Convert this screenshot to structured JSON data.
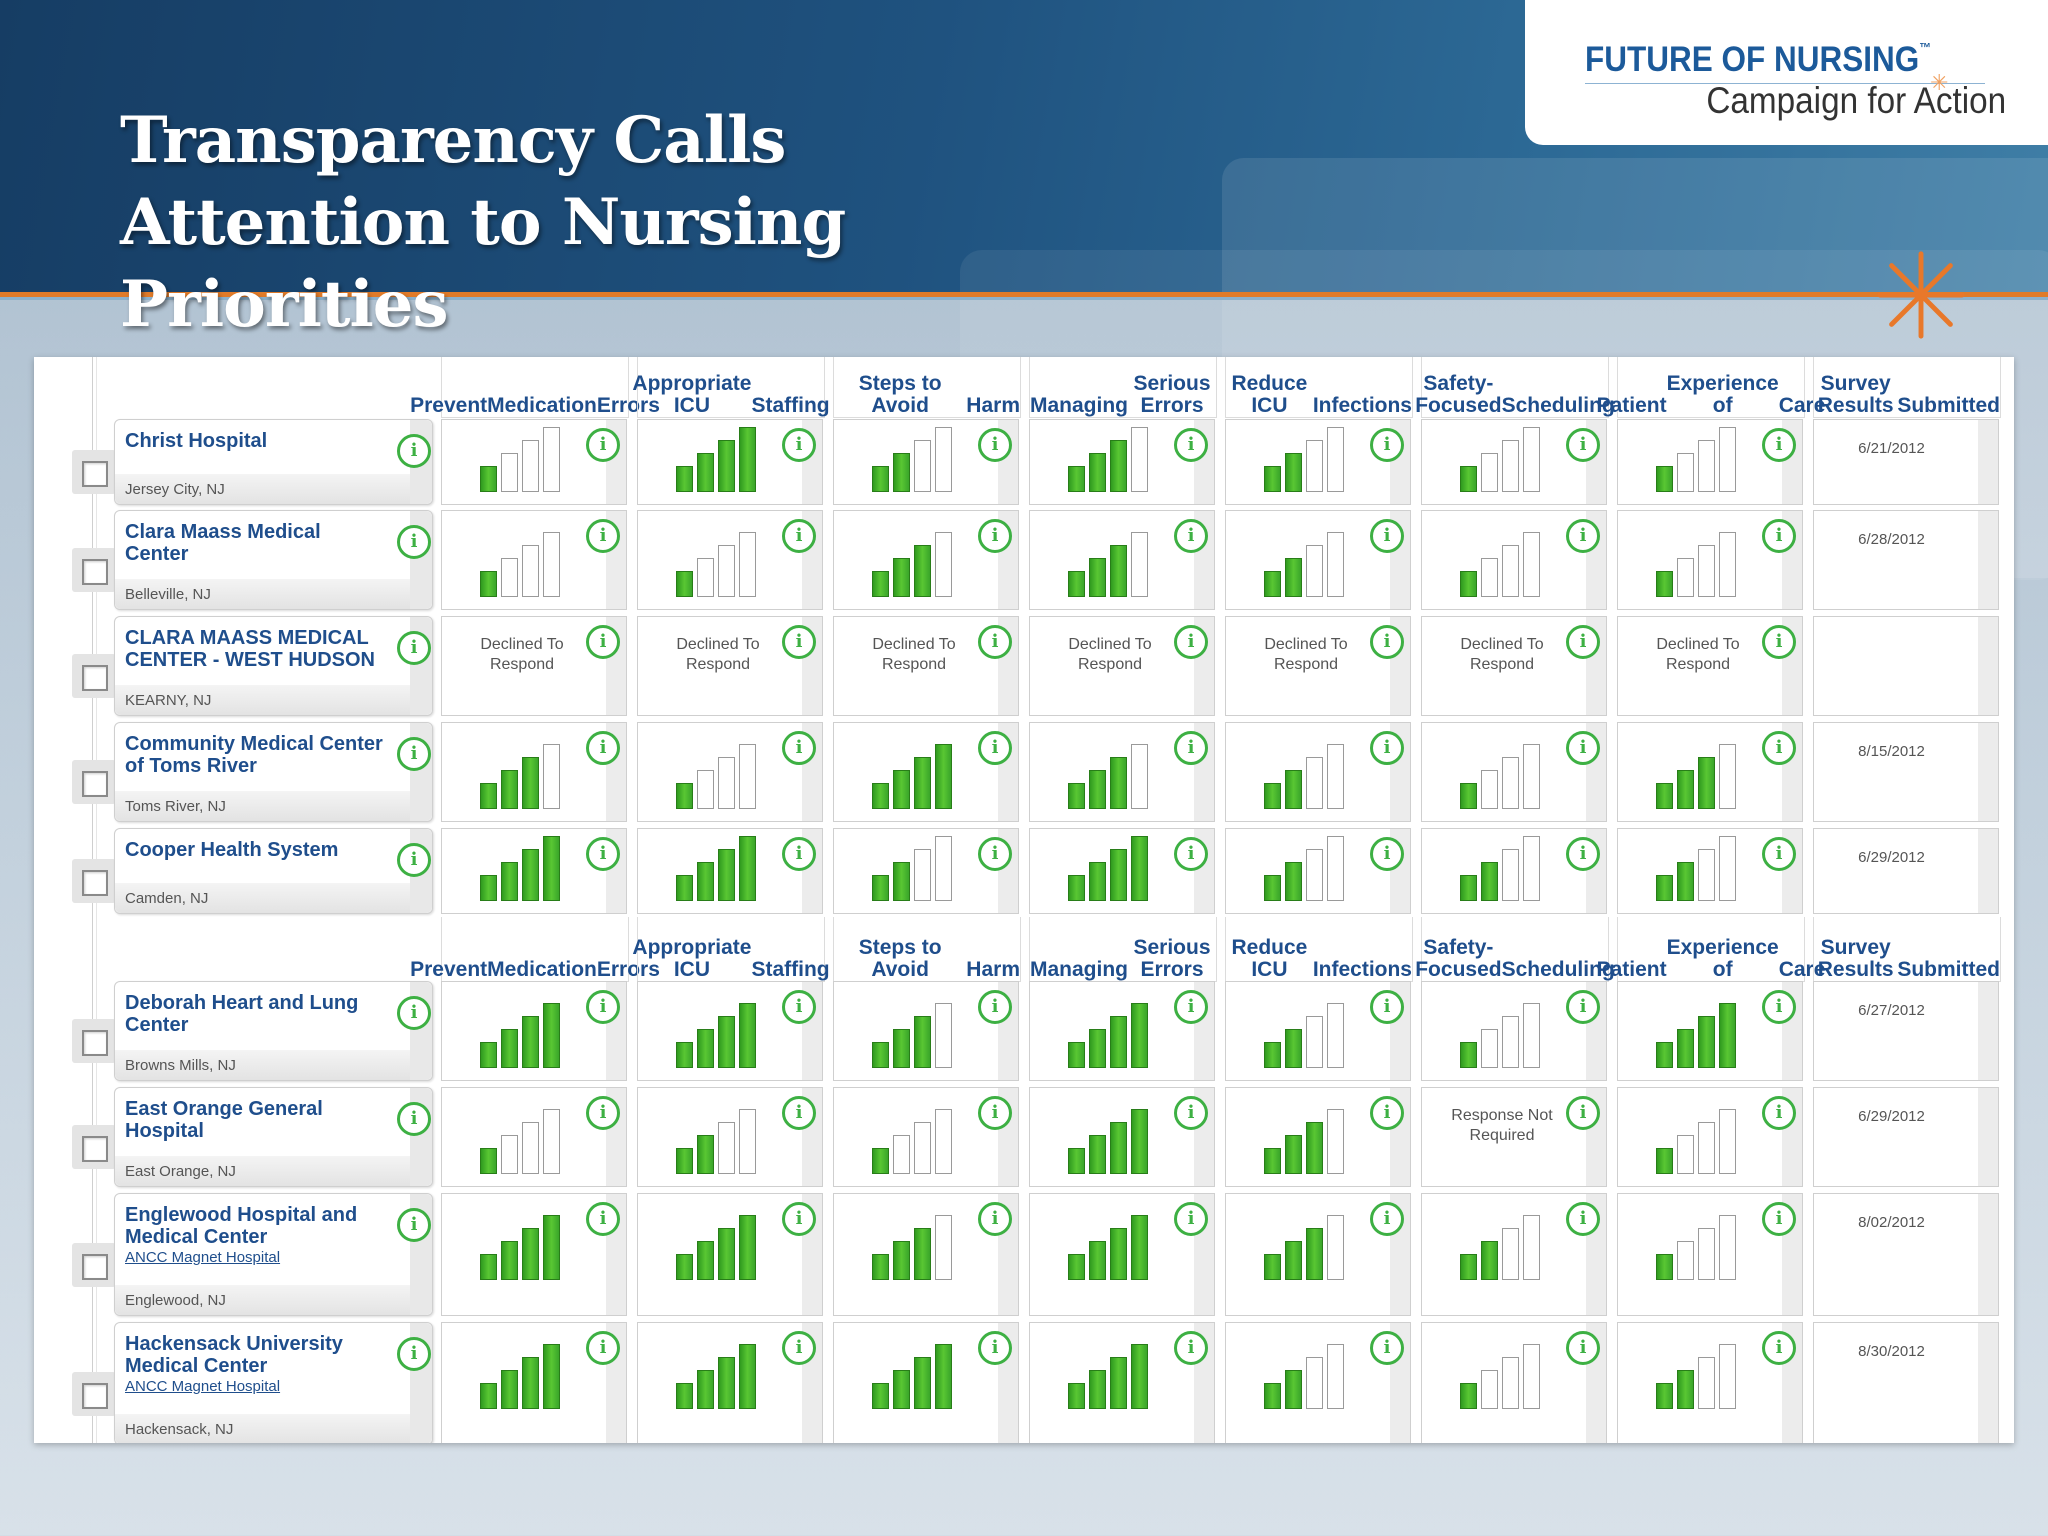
{
  "slide": {
    "title": "Transparency Calls Attention to Nursing Priorities",
    "logo_top": "FUTURE OF NURSING",
    "logo_tm": "™",
    "logo_bottom": "Campaign for Action"
  },
  "colors": {
    "header_dark": "#163d64",
    "accent_orange": "#e07b29",
    "bar_green": "#4ab82c",
    "heading_blue": "#1f4e8c",
    "info_green": "#3db043"
  },
  "columns": [
    "Prevent Medication Errors",
    "Appropriate ICU Staffing",
    "Steps to Avoid Harm",
    "Managing Serious Errors",
    "Reduce ICU Infections",
    "Safety-Focused Scheduling",
    "Patient Experience of Care",
    "Survey Results Submitted"
  ],
  "column_lines": [
    [
      "Prevent",
      "Medication",
      "Errors"
    ],
    [
      "Appropriate ICU",
      "Staffing"
    ],
    [
      "Steps to Avoid",
      "Harm"
    ],
    [
      "Managing",
      "Serious Errors"
    ],
    [
      "Reduce ICU",
      "Infections"
    ],
    [
      "Safety-Focused",
      "Scheduling"
    ],
    [
      "Patient",
      "Experience of",
      "Care"
    ],
    [
      "Survey Results",
      "Submitted"
    ]
  ],
  "info_glyph": "i",
  "max_score": 4,
  "hospitals": [
    {
      "name": "Christ Hospital",
      "location": "Jersey City, NJ",
      "magnet": "",
      "scores": [
        1,
        4,
        2,
        3,
        2,
        1,
        1
      ],
      "texts": [
        "",
        "",
        "",
        "",
        "",
        "",
        ""
      ],
      "date": "6/21/2012"
    },
    {
      "name": "Clara Maass Medical Center",
      "location": "Belleville, NJ",
      "magnet": "",
      "scores": [
        1,
        1,
        3,
        3,
        2,
        1,
        1
      ],
      "texts": [
        "",
        "",
        "",
        "",
        "",
        "",
        ""
      ],
      "date": "6/28/2012"
    },
    {
      "name": "CLARA MAASS MEDICAL CENTER - WEST HUDSON",
      "location": "KEARNY, NJ",
      "magnet": "",
      "scores": [
        0,
        0,
        0,
        0,
        0,
        0,
        0
      ],
      "texts": [
        "Declined To Respond",
        "Declined To Respond",
        "Declined To Respond",
        "Declined To Respond",
        "Declined To Respond",
        "Declined To Respond",
        "Declined To Respond"
      ],
      "date": ""
    },
    {
      "name": "Community Medical Center of Toms River",
      "location": "Toms River, NJ",
      "magnet": "",
      "scores": [
        3,
        1,
        4,
        3,
        2,
        1,
        3
      ],
      "texts": [
        "",
        "",
        "",
        "",
        "",
        "",
        ""
      ],
      "date": "8/15/2012"
    },
    {
      "name": "Cooper Health System",
      "location": "Camden, NJ",
      "magnet": "",
      "scores": [
        4,
        4,
        2,
        4,
        2,
        2,
        2
      ],
      "texts": [
        "",
        "",
        "",
        "",
        "",
        "",
        ""
      ],
      "date": "6/29/2012"
    },
    {
      "name": "Deborah Heart and Lung Center",
      "location": "Browns Mills, NJ",
      "magnet": "",
      "scores": [
        4,
        4,
        3,
        4,
        2,
        1,
        4
      ],
      "texts": [
        "",
        "",
        "",
        "",
        "",
        "",
        ""
      ],
      "date": "6/27/2012"
    },
    {
      "name": "East Orange General Hospital",
      "location": "East Orange, NJ",
      "magnet": "",
      "scores": [
        1,
        2,
        1,
        4,
        3,
        0,
        1
      ],
      "texts": [
        "",
        "",
        "",
        "",
        "",
        "Response Not Required",
        ""
      ],
      "date": "6/29/2012"
    },
    {
      "name": "Englewood Hospital and Medical Center",
      "location": "Englewood, NJ",
      "magnet": "ANCC Magnet Hospital",
      "scores": [
        4,
        4,
        3,
        4,
        3,
        2,
        1
      ],
      "texts": [
        "",
        "",
        "",
        "",
        "",
        "",
        ""
      ],
      "date": "8/02/2012"
    },
    {
      "name": "Hackensack University Medical Center",
      "location": "Hackensack, NJ",
      "magnet": "ANCC Magnet Hospital",
      "scores": [
        4,
        4,
        4,
        4,
        2,
        1,
        2
      ],
      "texts": [
        "",
        "",
        "",
        "",
        "",
        "",
        ""
      ],
      "date": "8/30/2012"
    }
  ]
}
